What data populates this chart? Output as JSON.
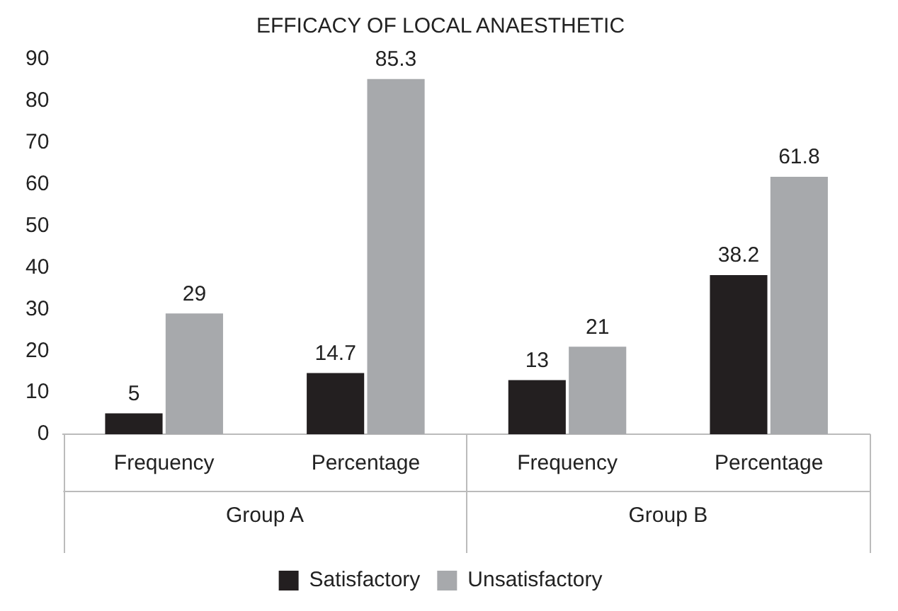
{
  "chart_data": {
    "type": "bar",
    "title": "EFFICACY OF LOCAL ANAESTHETIC",
    "categories": [
      "Frequency",
      "Percentage",
      "Frequency",
      "Percentage"
    ],
    "series": [
      {
        "name": "Satisfactory",
        "color": "#231f20",
        "values": [
          5,
          14.7,
          13,
          38.2
        ]
      },
      {
        "name": "Unsatisfactory",
        "color": "#a7a9ac",
        "values": [
          29,
          85.3,
          21,
          61.8
        ]
      }
    ],
    "annotations": [
      "Group A",
      "Group B"
    ],
    "ylim": [
      0,
      90
    ],
    "yticks": [
      0,
      10,
      20,
      30,
      40,
      50,
      60,
      70,
      80,
      90
    ],
    "grid": false,
    "legend": "bottom",
    "data_labels": true
  }
}
